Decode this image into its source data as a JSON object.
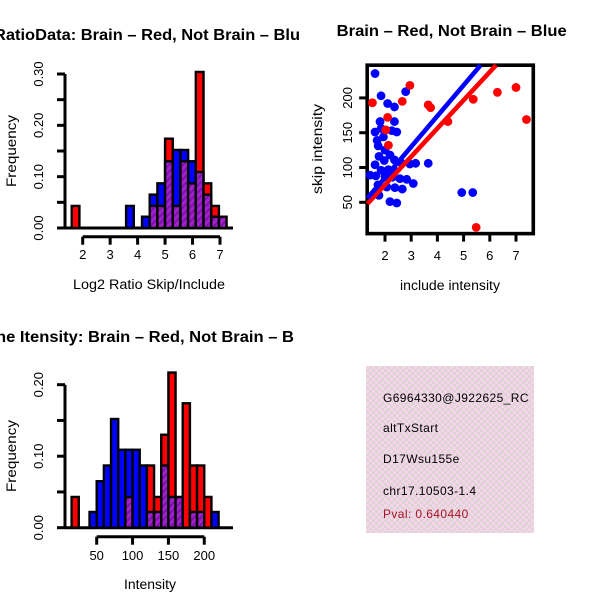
{
  "colors": {
    "red": "#ff0000",
    "blue": "#0000ff",
    "purple_base": "#a121cf",
    "purple_stripe": "#7d12a6",
    "axis_black": "#000000",
    "info_bg_pink": "#f8d3ee",
    "info_texture": "#ddd5d1",
    "pval_red": "#a41326"
  },
  "info_box": {
    "probe_id": "G6964330@J922625_RC",
    "event_type": "altTxStart",
    "gene_name": "D17Wsu155e",
    "locus": "chr17.10503-1.4",
    "pval": "Pval: 0.640440"
  },
  "chart_data": [
    {
      "type": "bar",
      "subtype": "overlaid-histogram",
      "panel": "top-left",
      "title": "RatioData: Brain – Red, Not Brain – Blu",
      "title_note": "truncated at panel edges",
      "xlabel": "Log2 Ratio Skip/Include",
      "ylabel": "Frequency",
      "xlim": [
        1.36,
        7.47
      ],
      "ylim": [
        0,
        0.3
      ],
      "xticks": [
        2,
        3,
        4,
        5,
        6,
        7
      ],
      "yticks": [
        0,
        0.05,
        0.1,
        0.15,
        0.2,
        0.25,
        0.3
      ],
      "ylabeled": [
        [
          0,
          "0.00"
        ],
        [
          0.1,
          "0.10"
        ],
        [
          0.2,
          "0.20"
        ],
        [
          0.3,
          "0.30"
        ]
      ],
      "series_legend": {
        "red": "Brain",
        "blue": "Not Brain",
        "overlap": "purple-hatch"
      },
      "bins": [
        {
          "x0": 1.6,
          "x1": 1.88,
          "blue": 0,
          "red": 0.043
        },
        {
          "x0": 3.58,
          "x1": 3.86,
          "blue": 0.043,
          "red": 0
        },
        {
          "x0": 4.16,
          "x1": 4.44,
          "blue": 0.022,
          "red": 0
        },
        {
          "x0": 4.44,
          "x1": 4.72,
          "blue": 0.065,
          "red": 0.043
        },
        {
          "x0": 4.72,
          "x1": 5.0,
          "blue": 0.087,
          "red": 0.043
        },
        {
          "x0": 5.0,
          "x1": 5.28,
          "blue": 0.13,
          "red": 0.174
        },
        {
          "x0": 5.28,
          "x1": 5.56,
          "blue": 0.152,
          "red": 0.043
        },
        {
          "x0": 5.56,
          "x1": 5.84,
          "blue": 0.152,
          "red": 0.13
        },
        {
          "x0": 5.84,
          "x1": 6.12,
          "blue": 0.13,
          "red": 0.087
        },
        {
          "x0": 6.12,
          "x1": 6.4,
          "blue": 0.109,
          "red": 0.304
        },
        {
          "x0": 6.4,
          "x1": 6.68,
          "blue": 0.065,
          "red": 0.087
        },
        {
          "x0": 6.68,
          "x1": 6.96,
          "blue": 0.022,
          "red": 0.043
        },
        {
          "x0": 6.96,
          "x1": 7.24,
          "blue": 0.022,
          "red": 0.022
        }
      ]
    },
    {
      "type": "scatter",
      "panel": "top-right",
      "title": "Brain – Red, Not Brain – Blue",
      "xlabel": "include intensity",
      "ylabel": "skip intensity",
      "xlim": [
        1.32,
        7.66
      ],
      "ylim": [
        5,
        247
      ],
      "xticks": [
        2,
        3,
        4,
        5,
        6,
        7
      ],
      "ylabeled": [
        [
          50,
          "50"
        ],
        [
          100,
          "100"
        ],
        [
          150,
          "150"
        ],
        [
          200,
          "200"
        ]
      ],
      "blue_points": [
        [
          1.62,
          235
        ],
        [
          2.79,
          209
        ],
        [
          1.85,
          203
        ],
        [
          2.1,
          192
        ],
        [
          2.36,
          187
        ],
        [
          1.81,
          166
        ],
        [
          2.36,
          166
        ],
        [
          1.85,
          156
        ],
        [
          1.62,
          151
        ],
        [
          2.26,
          153
        ],
        [
          2.45,
          151
        ],
        [
          1.94,
          144
        ],
        [
          1.7,
          139
        ],
        [
          1.74,
          131
        ],
        [
          2.0,
          125
        ],
        [
          1.77,
          116
        ],
        [
          2.19,
          118
        ],
        [
          1.97,
          110
        ],
        [
          2.36,
          111
        ],
        [
          2.61,
          107
        ],
        [
          1.62,
          104
        ],
        [
          2.95,
          105
        ],
        [
          3.17,
          106
        ],
        [
          3.65,
          106
        ],
        [
          1.85,
          96
        ],
        [
          2.13,
          97
        ],
        [
          2.38,
          95
        ],
        [
          1.43,
          89
        ],
        [
          1.65,
          88
        ],
        [
          2.0,
          87
        ],
        [
          2.28,
          86
        ],
        [
          2.57,
          84
        ],
        [
          2.83,
          83
        ],
        [
          3.08,
          77
        ],
        [
          1.73,
          75
        ],
        [
          2.07,
          72
        ],
        [
          2.38,
          71
        ],
        [
          2.66,
          69
        ],
        [
          4.93,
          64
        ],
        [
          5.35,
          64
        ],
        [
          1.77,
          60
        ],
        [
          2.19,
          51
        ],
        [
          2.45,
          49
        ]
      ],
      "red_points": [
        [
          1.52,
          193
        ],
        [
          2.03,
          154
        ],
        [
          2.1,
          172
        ],
        [
          2.13,
          132
        ],
        [
          2.66,
          195
        ],
        [
          2.95,
          218
        ],
        [
          3.65,
          190
        ],
        [
          3.74,
          186
        ],
        [
          4.4,
          166
        ],
        [
          5.37,
          198
        ],
        [
          5.48,
          14
        ],
        [
          6.29,
          208
        ],
        [
          7.0,
          215
        ],
        [
          7.4,
          169
        ]
      ],
      "blue_line": {
        "x1": 1.33,
        "y1": 56,
        "x2": 5.65,
        "y2": 247
      },
      "red_line": {
        "x1": 1.33,
        "y1": 48,
        "x2": 6.24,
        "y2": 247
      }
    },
    {
      "type": "bar",
      "subtype": "overlaid-histogram",
      "panel": "bottom-left",
      "title": "ne Itensity: Brain – Red, Not Brain – B",
      "title_note": "truncated at panel edges",
      "xlabel": "Intensity",
      "ylabel": "Frequency",
      "xlim": [
        6,
        240
      ],
      "ylim": [
        0,
        0.2
      ],
      "xticks": [
        50,
        100,
        150,
        200
      ],
      "yticks": [
        0,
        0.05,
        0.1,
        0.15,
        0.2
      ],
      "ylabeled": [
        [
          0,
          "0.00"
        ],
        [
          0.1,
          "0.10"
        ],
        [
          0.2,
          "0.20"
        ]
      ],
      "series_legend": {
        "red": "Brain",
        "blue": "Not Brain",
        "overlap": "purple-hatch"
      },
      "bins": [
        {
          "x0": 15,
          "x1": 25,
          "blue": 0,
          "red": 0.043
        },
        {
          "x0": 40,
          "x1": 50,
          "blue": 0.022,
          "red": 0
        },
        {
          "x0": 50,
          "x1": 60,
          "blue": 0.065,
          "red": 0
        },
        {
          "x0": 60,
          "x1": 70,
          "blue": 0.087,
          "red": 0
        },
        {
          "x0": 70,
          "x1": 80,
          "blue": 0.152,
          "red": 0
        },
        {
          "x0": 80,
          "x1": 90,
          "blue": 0.109,
          "red": 0
        },
        {
          "x0": 90,
          "x1": 100,
          "blue": 0.109,
          "red": 0.043
        },
        {
          "x0": 100,
          "x1": 110,
          "blue": 0.109,
          "red": 0
        },
        {
          "x0": 110,
          "x1": 120,
          "blue": 0.087,
          "red": 0
        },
        {
          "x0": 120,
          "x1": 130,
          "blue": 0.022,
          "red": 0.087
        },
        {
          "x0": 130,
          "x1": 140,
          "blue": 0.022,
          "red": 0.043
        },
        {
          "x0": 140,
          "x1": 150,
          "blue": 0.087,
          "red": 0.13
        },
        {
          "x0": 150,
          "x1": 160,
          "blue": 0.043,
          "red": 0.217
        },
        {
          "x0": 160,
          "x1": 170,
          "blue": 0.043,
          "red": 0.043
        },
        {
          "x0": 170,
          "x1": 180,
          "blue": 0,
          "red": 0.174
        },
        {
          "x0": 180,
          "x1": 190,
          "blue": 0.022,
          "red": 0.087
        },
        {
          "x0": 190,
          "x1": 200,
          "blue": 0.022,
          "red": 0.087
        },
        {
          "x0": 200,
          "x1": 210,
          "blue": 0,
          "red": 0.043
        },
        {
          "x0": 210,
          "x1": 220,
          "blue": 0.022,
          "red": 0
        }
      ]
    }
  ]
}
